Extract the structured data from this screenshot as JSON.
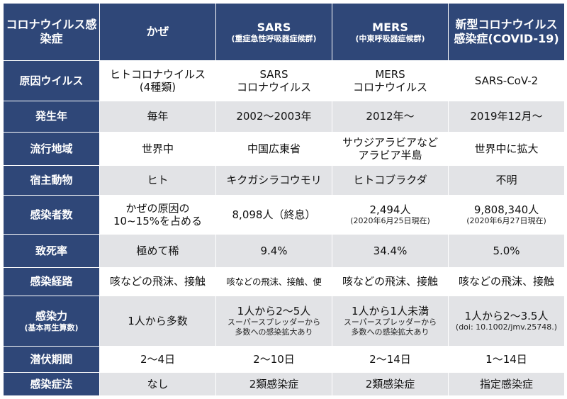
{
  "header": {
    "corner": [
      "コロナウイルス",
      "感染症"
    ],
    "columns": [
      {
        "title": [
          "かぜ"
        ],
        "sub": ""
      },
      {
        "title": [
          "SARS"
        ],
        "sub": "(重症急性呼吸器症候群)"
      },
      {
        "title": [
          "MERS"
        ],
        "sub": "(中東呼吸器症候群)"
      },
      {
        "title": [
          "新型コロナウイルス",
          "感染症",
          "(COVID-19)"
        ],
        "sub": ""
      }
    ]
  },
  "rows": [
    {
      "label": "原因ウイルス",
      "cells": [
        [
          "ヒトコロナウイルス",
          "(4種類)"
        ],
        [
          "SARS",
          "コロナウイルス"
        ],
        [
          "MERS",
          "コロナウイルス"
        ],
        [
          "SARS-CoV-2"
        ]
      ]
    },
    {
      "label": "発生年",
      "cells": [
        [
          "毎年"
        ],
        [
          "2002〜2003年"
        ],
        [
          "2012年〜"
        ],
        [
          "2019年12月〜"
        ]
      ]
    },
    {
      "label": "流行地域",
      "cells": [
        [
          "世界中"
        ],
        [
          "中国広東省"
        ],
        [
          "サウジアラビアなど",
          "アラビア半島"
        ],
        [
          "世界中に拡大"
        ]
      ]
    },
    {
      "label": "宿主動物",
      "cells": [
        [
          "ヒト"
        ],
        [
          "キクガシラコウモリ"
        ],
        [
          "ヒトコブラクダ"
        ],
        [
          "不明"
        ]
      ]
    },
    {
      "label": "感染者数",
      "cells": [
        [
          "かぜの原因の",
          "10~15%を占める"
        ],
        [
          "8,098人（終息）"
        ],
        [
          "2,494人"
        ],
        [
          "9,808,340人"
        ]
      ],
      "notes": [
        "",
        "",
        "(2020年6月25日現在)",
        "(2020年6月27日現在)"
      ]
    },
    {
      "label": "致死率",
      "cells": [
        [
          "極めて稀"
        ],
        [
          "9.4%"
        ],
        [
          "34.4%"
        ],
        [
          "5.0%"
        ]
      ]
    },
    {
      "label": "感染経路",
      "cells": [
        [
          "咳などの飛沫、接触"
        ],
        [
          "咳などの飛沫、接触、便"
        ],
        [
          "咳などの飛沫、接触"
        ],
        [
          "咳などの飛沫、接触"
        ]
      ]
    },
    {
      "label": "感染力",
      "sublabel": "(基本再生算数)",
      "cells": [
        [
          "1人から多数"
        ],
        [
          "1人から2〜5人"
        ],
        [
          "1人から1人未満"
        ],
        [
          "1人から2〜3.5人"
        ]
      ],
      "notes": [
        "",
        "スーパースプレッダーから\n多数への感染拡大あり",
        "スーパースプレッダーから\n多数への感染拡大あり",
        "(doi: 10.1002/jmv.25748.)"
      ]
    },
    {
      "label": "潜伏期間",
      "cells": [
        [
          "2〜4日"
        ],
        [
          "2〜10日"
        ],
        [
          "2〜14日"
        ],
        [
          "1〜14日"
        ]
      ]
    },
    {
      "label": "感染症法",
      "cells": [
        [
          "なし"
        ],
        [
          "2類感染症"
        ],
        [
          "2類感染症"
        ],
        [
          "指定感染症"
        ]
      ]
    }
  ],
  "colors": {
    "header_bg": "#2f4778",
    "stripe": "#e2e3e6",
    "text": "#111111"
  }
}
